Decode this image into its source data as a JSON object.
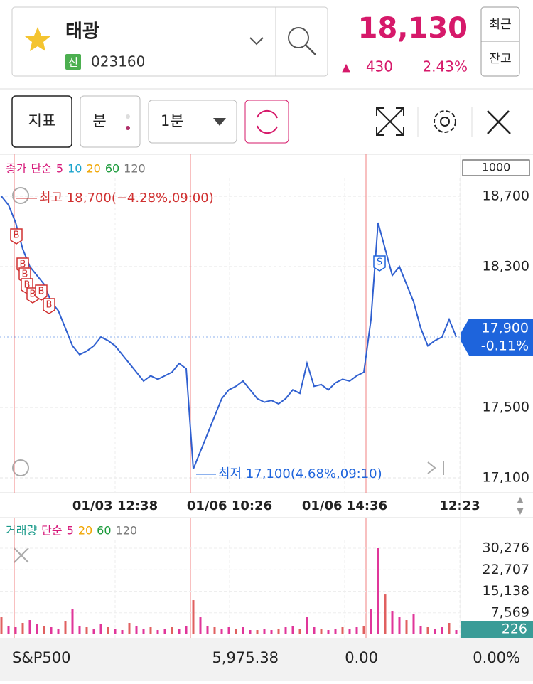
{
  "header": {
    "name": "태광",
    "badge": "신",
    "code": "023160",
    "price": "18,130",
    "change_arrow": "▲",
    "change": "430",
    "change_pct": "2.43%",
    "buttons": [
      "최근",
      "잔고"
    ]
  },
  "toolbar": {
    "buttons": [
      "지표",
      "분"
    ],
    "interval": "1분"
  },
  "chart": {
    "legend": [
      "종가",
      "단순",
      "5",
      "10",
      "20",
      "60",
      "120"
    ],
    "legend_colors": [
      "#d6197a",
      "#d6197a",
      "#d6197a",
      "#1aa3cc",
      "#f0a500",
      "#1a9a3a",
      "#777777"
    ],
    "scale_box": "1000",
    "ylim": [
      17100,
      18700
    ],
    "yticks": [
      {
        "value": 18700,
        "label": "18,700"
      },
      {
        "value": 18300,
        "label": "18,300"
      },
      {
        "value": 17500,
        "label": "17,500"
      },
      {
        "value": 17100,
        "label": "17,100"
      }
    ],
    "current": {
      "value": 17900,
      "label": "17,900",
      "change": "-0.11%"
    },
    "high_note": "최고 18,700(−4.28%,09:00)",
    "low_note": "최저 17,100(4.68%,09:10)",
    "time_labels": [
      "01/03 12:38",
      "01/06 10:26",
      "01/06 14:36",
      "12:23"
    ],
    "signals": [
      "B",
      "B",
      "B",
      "B",
      "B",
      "B",
      "B",
      "S"
    ],
    "price": [
      18700,
      18650,
      18550,
      18400,
      18300,
      18250,
      18200,
      18100,
      18050,
      17950,
      17850,
      17800,
      17820,
      17850,
      17900,
      17880,
      17850,
      17800,
      17750,
      17700,
      17650,
      17680,
      17660,
      17680,
      17700,
      17750,
      17720,
      17150,
      17250,
      17350,
      17450,
      17550,
      17600,
      17620,
      17650,
      17600,
      17550,
      17530,
      17540,
      17520,
      17550,
      17600,
      17580,
      17750,
      17620,
      17630,
      17600,
      17640,
      17660,
      17650,
      17680,
      17700,
      18000,
      18550,
      18400,
      18250,
      18300,
      18200,
      18100,
      17950,
      17850,
      17880,
      17900,
      18000,
      17900
    ]
  },
  "volume": {
    "legend": [
      "거래량",
      "단순",
      "5",
      "20",
      "60",
      "120"
    ],
    "legend_colors": [
      "#1a9a8a",
      "#d6197a",
      "#d6197a",
      "#f0a500",
      "#1a9a3a",
      "#777777"
    ],
    "ylim": [
      0,
      30276
    ],
    "yticks": [
      {
        "value": 30276,
        "label": "30,276"
      },
      {
        "value": 22707,
        "label": "22,707"
      },
      {
        "value": 15138,
        "label": "15,138"
      },
      {
        "value": 7569,
        "label": "7,569"
      }
    ],
    "current": 226,
    "values": [
      6000,
      3000,
      2500,
      4000,
      5000,
      3500,
      3000,
      2500,
      2000,
      4500,
      9000,
      3000,
      2500,
      2000,
      3500,
      2500,
      2000,
      1500,
      4000,
      3000,
      2000,
      2500,
      1500,
      2000,
      2500,
      2000,
      3000,
      12000,
      6000,
      3000,
      2500,
      2000,
      2500,
      2000,
      2500,
      1500,
      1500,
      2000,
      1500,
      2000,
      2500,
      3000,
      2000,
      6000,
      2500,
      2000,
      1500,
      2000,
      2500,
      2000,
      2500,
      3000,
      9000,
      30276,
      14000,
      8000,
      6000,
      5000,
      7000,
      3000,
      2500,
      2000,
      2500,
      4000,
      1500
    ]
  },
  "footer": {
    "name": "S&P500",
    "value": "5,975.38",
    "change": "0.00",
    "change_pct": "0.00%"
  }
}
